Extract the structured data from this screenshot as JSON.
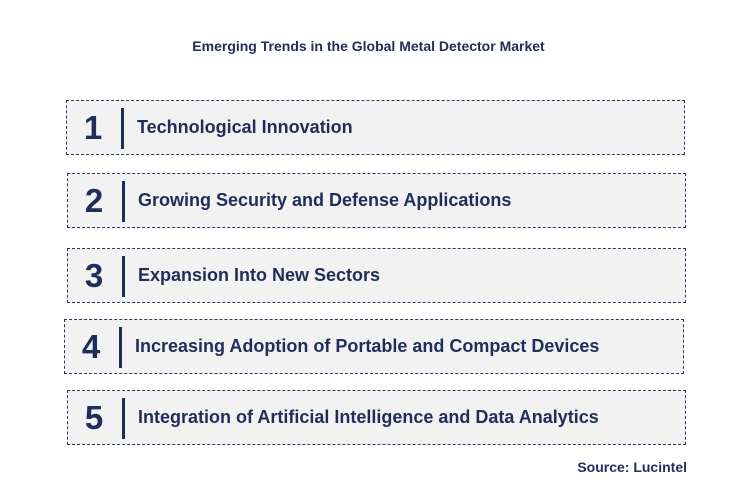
{
  "title": "Emerging Trends in the Global Metal Detector Market",
  "trends": [
    {
      "number": "1",
      "label": "Technological Innovation"
    },
    {
      "number": "2",
      "label": "Growing Security and Defense Applications"
    },
    {
      "number": "3",
      "label": "Expansion Into New Sectors"
    },
    {
      "number": "4",
      "label": "Increasing Adoption of Portable and Compact Devices"
    },
    {
      "number": "5",
      "label": "Integration of Artificial Intelligence and Data Analytics"
    }
  ],
  "source": "Source: Lucintel",
  "colors": {
    "text": "#1f2d5a",
    "box_fill": "#f2f2f2",
    "box_border": "#2e3a66"
  }
}
